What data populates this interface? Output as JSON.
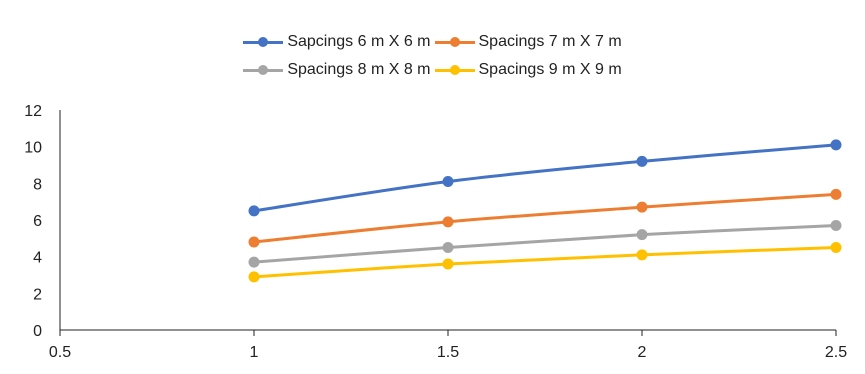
{
  "chart_data": {
    "type": "line",
    "title": "",
    "xlabel": "",
    "ylabel": "",
    "xlim": [
      0.5,
      2.5
    ],
    "ylim": [
      0,
      12
    ],
    "x_ticks": [
      0.5,
      1,
      1.5,
      2,
      2.5
    ],
    "x_tick_labels": [
      "0.5",
      "1",
      "1.5",
      "2",
      "2.5"
    ],
    "y_ticks": [
      0,
      2,
      4,
      6,
      8,
      10,
      12
    ],
    "y_tick_labels": [
      "0",
      "2",
      "4",
      "6",
      "8",
      "10",
      "12"
    ],
    "grid": false,
    "legend_position": "top",
    "x": [
      1,
      1.5,
      2,
      2.5
    ],
    "series": [
      {
        "name": "Sapcings 6 m X 6 m",
        "color": "#4472C4",
        "values": [
          6.5,
          8.1,
          9.2,
          10.1
        ]
      },
      {
        "name": "Spacings 7 m X 7 m",
        "color": "#ED7D31",
        "values": [
          4.8,
          5.9,
          6.7,
          7.4
        ]
      },
      {
        "name": "Spacings 8 m X 8 m",
        "color": "#A5A5A5",
        "values": [
          3.7,
          4.5,
          5.2,
          5.7
        ]
      },
      {
        "name": "Spacings 9 m X 9 m",
        "color": "#FFC000",
        "values": [
          2.9,
          3.6,
          4.1,
          4.5
        ]
      }
    ]
  }
}
